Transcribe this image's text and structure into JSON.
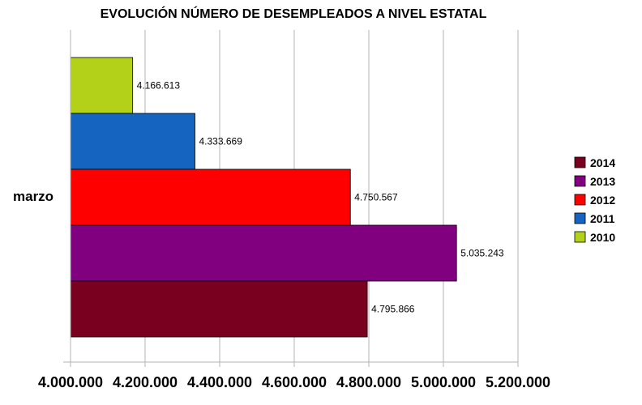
{
  "chart_data": {
    "type": "bar",
    "orientation": "horizontal",
    "title": "EVOLUCIÓN NÚMERO DE DESEMPLEADOS A NIVEL ESTATAL",
    "categories": [
      "marzo"
    ],
    "series": [
      {
        "name": "2010",
        "values": [
          4166613
        ],
        "label": "4.166.613",
        "color": "#b2d118"
      },
      {
        "name": "2011",
        "values": [
          4333669
        ],
        "label": "4.333.669",
        "color": "#1565c0"
      },
      {
        "name": "2012",
        "values": [
          4750567
        ],
        "label": "4.750.567",
        "color": "#ff0000"
      },
      {
        "name": "2013",
        "values": [
          5035243
        ],
        "label": "5.035.243",
        "color": "#800080"
      },
      {
        "name": "2014",
        "values": [
          4795866
        ],
        "label": "4.795.866",
        "color": "#7a0020"
      }
    ],
    "xlim": [
      4000000,
      5200000
    ],
    "x_ticks": [
      4000000,
      4200000,
      4400000,
      4600000,
      4800000,
      5000000,
      5200000
    ],
    "x_tick_labels": [
      "4.000.000",
      "4.200.000",
      "4.400.000",
      "4.600.000",
      "4.800.000",
      "5.000.000",
      "5.200.000"
    ],
    "xlabel": "",
    "ylabel": "",
    "grid": true,
    "legend": {
      "position": "right",
      "order": [
        "2014",
        "2013",
        "2012",
        "2011",
        "2010"
      ]
    }
  }
}
